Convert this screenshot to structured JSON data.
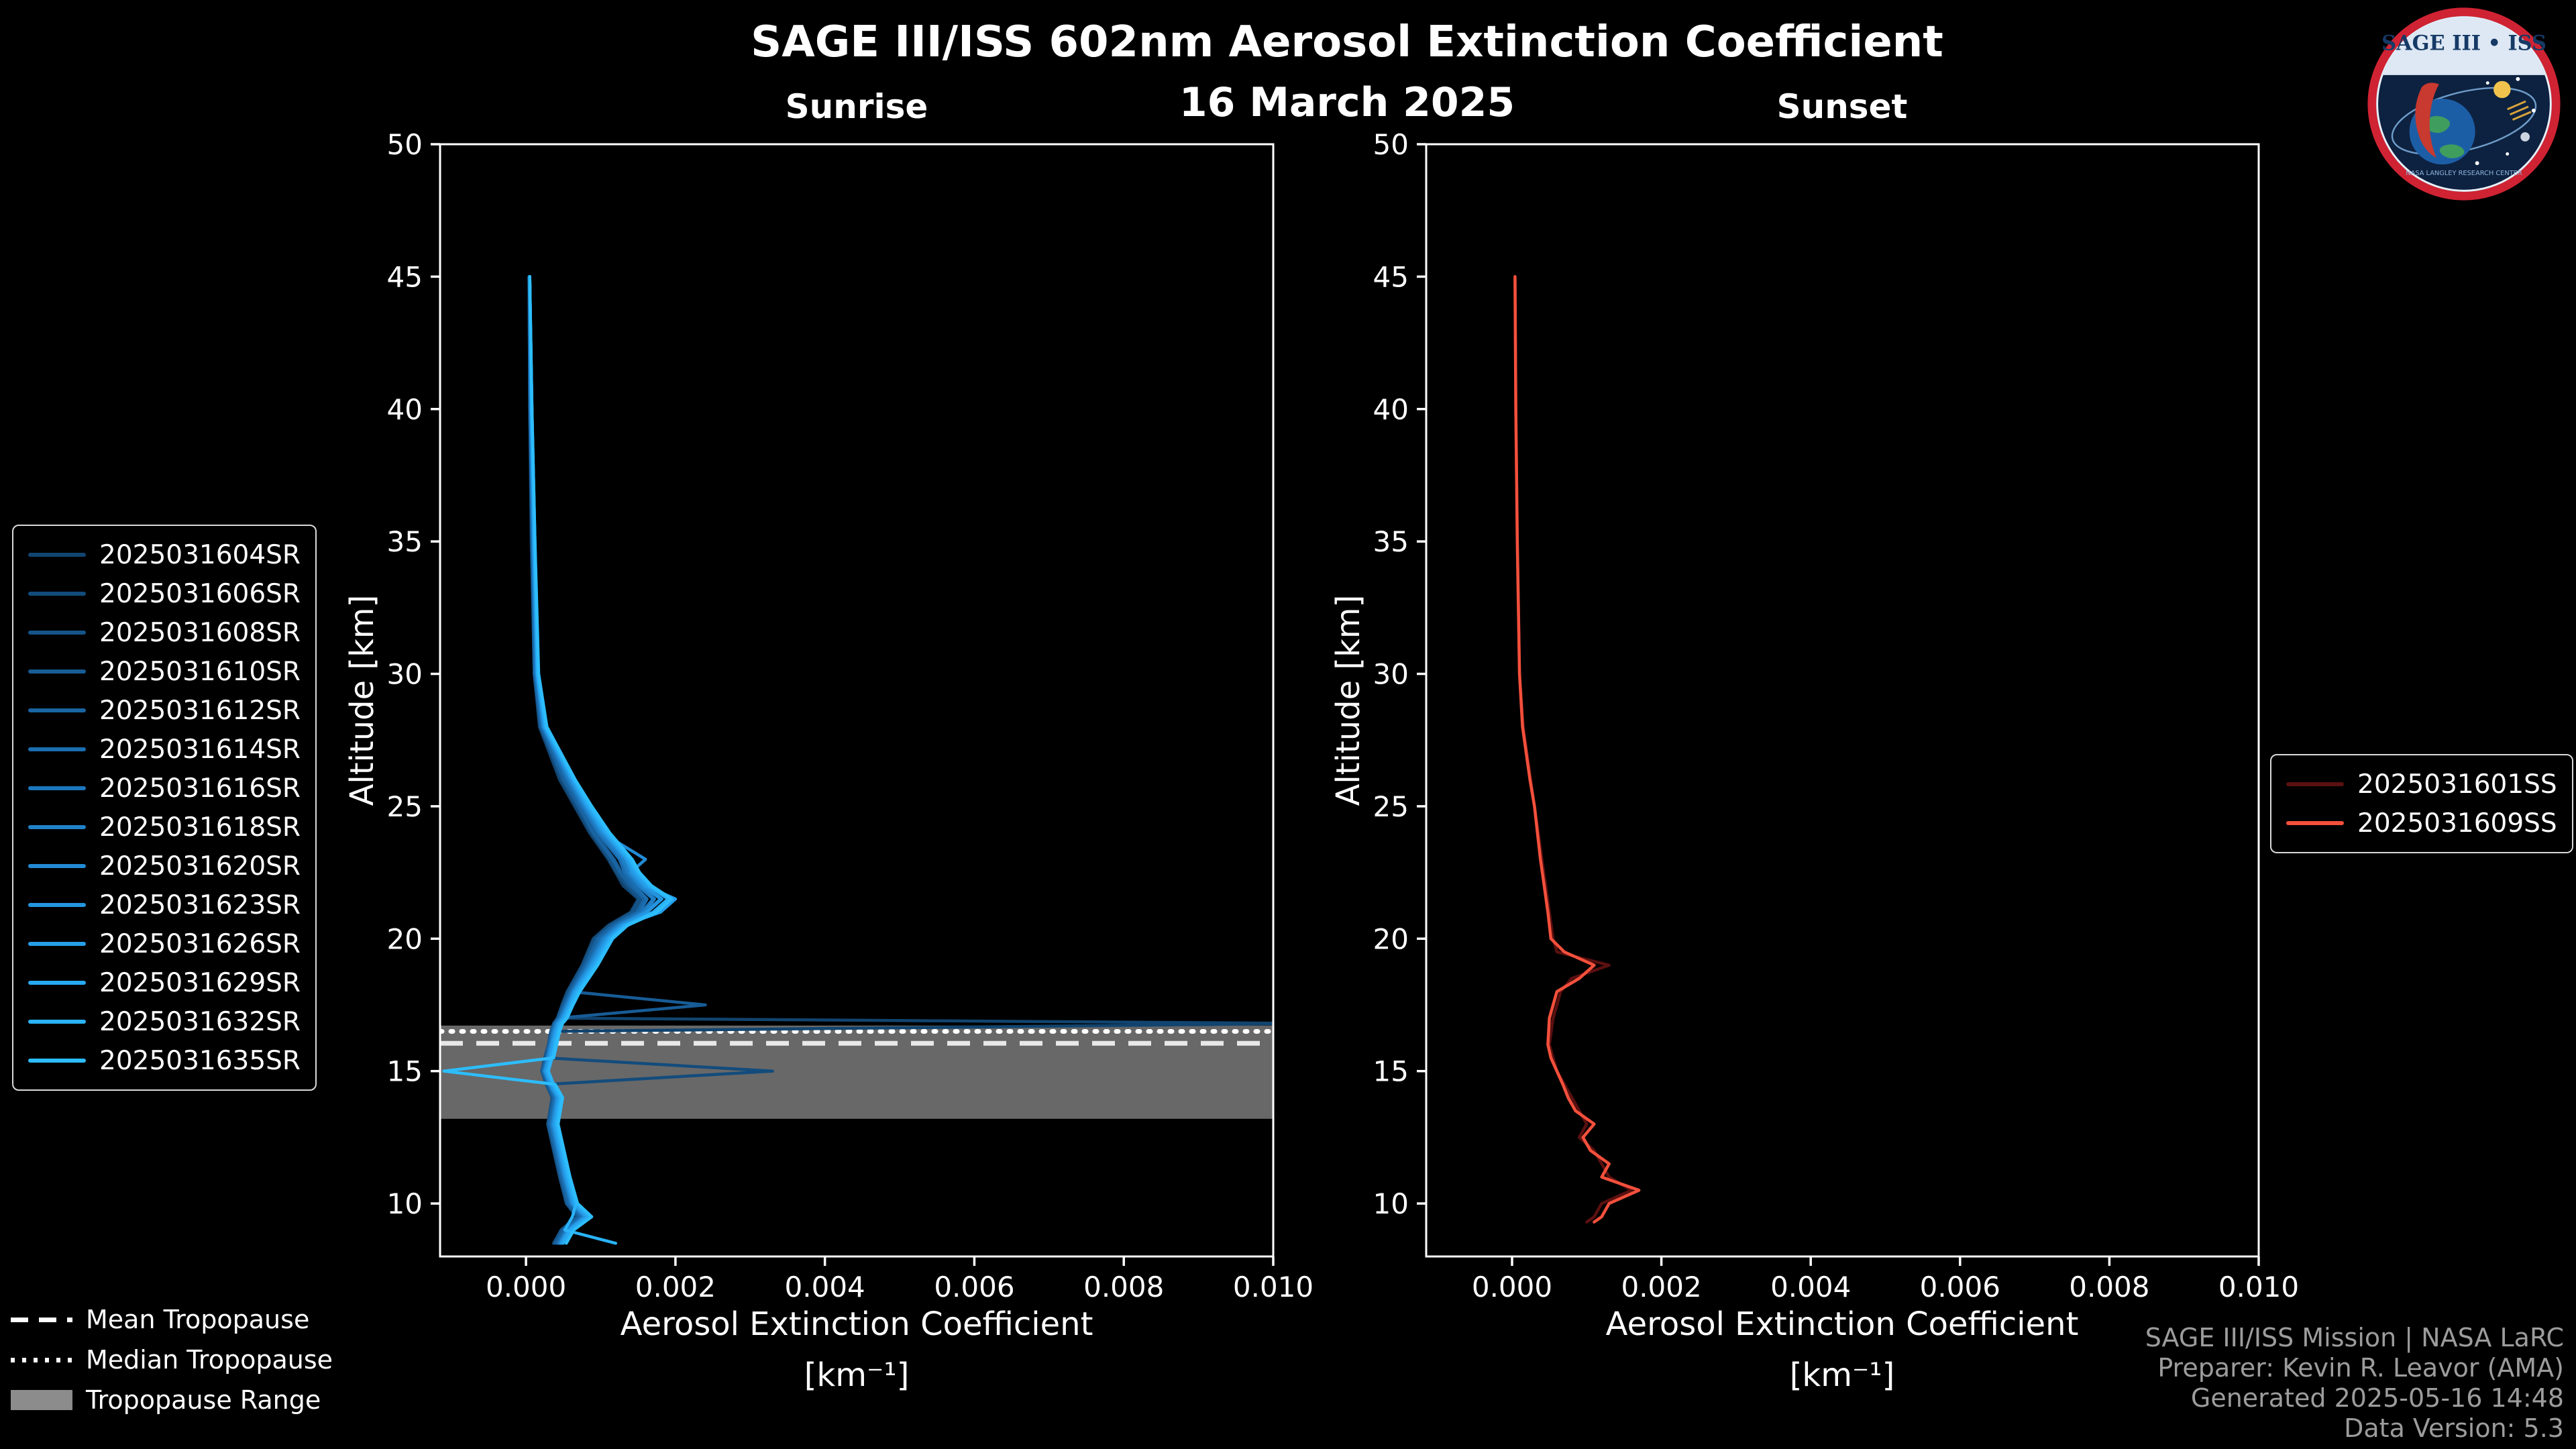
{
  "header": {
    "title": "SAGE III/ISS 602nm Aerosol Extinction Coefficient",
    "date": "16 March 2025"
  },
  "logo": {
    "title": "SAGE III • ISS",
    "ring_text": "NASA LANGLEY RESEARCH CENTER"
  },
  "credits": [
    "SAGE III/ISS Mission | NASA LaRC",
    "Preparer: Kevin R. Leavor (AMA)",
    "Generated 2025-05-16 14:48",
    "Data Version: 5.3"
  ],
  "tropopause_legend": [
    {
      "style": "dashed",
      "label": "Mean Tropopause"
    },
    {
      "style": "dotted",
      "label": "Median Tropopause"
    },
    {
      "style": "patch",
      "label": "Tropopause Range"
    }
  ],
  "colors": {
    "background": "#000000",
    "foreground": "#ffffff",
    "tropopause_band": "#909090",
    "credits_text": "#9c9c9c",
    "sunrise_dark": "#11446f",
    "sunrise_bright": "#2dbdfd",
    "sunset_dark": "#5a1010",
    "sunset_bright": "#f4503c"
  },
  "chart_data": [
    {
      "type": "line",
      "id": "sunrise",
      "title": "Sunrise",
      "xlabel": "Aerosol Extinction Coefficient",
      "xlabel_units": "[km⁻¹]",
      "ylabel": "Altitude [km]",
      "xlim": [
        -0.00115,
        0.01
      ],
      "ylim": [
        8,
        50
      ],
      "xticks": [
        0,
        0.002,
        0.004,
        0.006,
        0.008,
        0.01
      ],
      "xtick_labels": [
        "0.000",
        "0.002",
        "0.004",
        "0.006",
        "0.008",
        "0.010"
      ],
      "yticks": [
        10,
        15,
        20,
        25,
        30,
        35,
        40,
        45,
        50
      ],
      "grid": false,
      "legend_position": "left-outside",
      "value_scale": 0.0001,
      "altitudes": [
        45,
        40,
        35,
        30,
        28,
        26,
        25,
        24,
        23,
        22.5,
        22,
        21.5,
        21,
        20.5,
        20,
        19,
        18,
        17.5,
        17,
        16.8,
        16.5,
        16,
        15.5,
        15,
        14.5,
        14,
        13,
        12,
        11,
        10,
        9.5,
        9,
        8.5
      ],
      "series": [
        {
          "name": "2025031604SR",
          "color": "#11446f",
          "values": [
            0.4,
            0.5,
            0.7,
            1.1,
            1.8,
            4.5,
            6.5,
            8.5,
            11,
            12,
            13,
            15,
            14,
            11,
            9,
            7.5,
            5.5,
            4.8,
            4.2,
            105,
            3.4,
            3,
            2.6,
            2.2,
            2.8,
            3.6,
            3,
            3.8,
            4.6,
            5.5,
            7,
            4.8,
            3.8
          ]
        },
        {
          "name": "2025031606SR",
          "color": "#134c7c",
          "values": [
            0.5,
            0.5,
            0.8,
            1.2,
            2,
            5,
            7,
            9,
            11.5,
            12.5,
            14,
            15.5,
            14.5,
            11.5,
            9.5,
            7.8,
            5.8,
            5,
            4.3,
            3.8,
            3.4,
            3.1,
            2.7,
            33,
            2.9,
            3.7,
            3.1,
            3.9,
            4.7,
            5.6,
            7.2,
            5,
            4
          ]
        },
        {
          "name": "2025031608SR",
          "color": "#155489",
          "values": [
            0.4,
            0.6,
            0.8,
            1.1,
            1.9,
            4.8,
            6.8,
            8.8,
            11.2,
            12.2,
            13.5,
            15.2,
            14.2,
            11.2,
            9.2,
            7.6,
            5.6,
            4.9,
            4.2,
            3.7,
            3.3,
            3,
            2.5,
            2.1,
            2.7,
            3.5,
            2.9,
            3.7,
            4.5,
            5.4,
            6.8,
            4.7,
            3.7
          ]
        },
        {
          "name": "2025031610SR",
          "color": "#175c96",
          "values": [
            0.5,
            0.6,
            0.9,
            1.2,
            2.1,
            5.2,
            7.2,
            9.2,
            11.8,
            12.8,
            14.2,
            16,
            15,
            11.8,
            9.8,
            8,
            6,
            24,
            4.4,
            3.9,
            3.5,
            3.2,
            2.8,
            2.3,
            3,
            3.8,
            3.2,
            4,
            4.8,
            5.8,
            7.4,
            5.2,
            4.2
          ]
        },
        {
          "name": "2025031612SR",
          "color": "#1965a3",
          "values": [
            0.4,
            0.5,
            0.8,
            1.1,
            2,
            5.1,
            7.1,
            9,
            11.6,
            12.6,
            14,
            15.8,
            14.8,
            11.6,
            9.6,
            7.9,
            5.9,
            5.1,
            4.4,
            3.8,
            3.4,
            3.1,
            2.7,
            2.2,
            2.9,
            3.7,
            3.1,
            3.9,
            4.7,
            5.6,
            7.1,
            5,
            4
          ]
        },
        {
          "name": "2025031614SR",
          "color": "#1b6eb0",
          "values": [
            0.5,
            0.6,
            0.9,
            1.3,
            2.2,
            5.5,
            7.5,
            9.6,
            12.5,
            13.2,
            14.5,
            16.2,
            15.2,
            12,
            10,
            8.2,
            6.1,
            5.3,
            4.5,
            4,
            3.6,
            3.2,
            2.8,
            2.4,
            3.1,
            3.9,
            3.3,
            4.1,
            4.9,
            5.9,
            7.5,
            5.3,
            4.3
          ]
        },
        {
          "name": "2025031616SR",
          "color": "#1d77bd",
          "values": [
            0.5,
            0.6,
            0.9,
            1.3,
            2.2,
            5.6,
            7.6,
            9.8,
            12.8,
            13.5,
            15,
            17,
            15.5,
            12.2,
            10.2,
            8.3,
            6.2,
            5.4,
            4.6,
            4,
            3.6,
            3.3,
            2.9,
            2.4,
            3.1,
            4,
            3.4,
            4.2,
            5,
            6,
            7.6,
            5.4,
            4.4
          ]
        },
        {
          "name": "2025031618SR",
          "color": "#2081c9",
          "values": [
            0.5,
            0.7,
            1,
            1.4,
            2.3,
            5.8,
            7.8,
            10,
            13,
            13.8,
            15.2,
            17.2,
            15.8,
            12.4,
            10.4,
            8.5,
            6.3,
            5.5,
            4.7,
            4.1,
            3.7,
            3.3,
            2.9,
            2.5,
            3.2,
            4.1,
            3.5,
            4.3,
            5.1,
            6.1,
            7.8,
            5.5,
            4.5
          ]
        },
        {
          "name": "2025031620SR",
          "color": "#228bd5",
          "values": [
            0.5,
            0.7,
            1,
            1.4,
            2.4,
            6,
            8,
            10.2,
            16,
            14,
            15.5,
            18,
            16,
            12.6,
            10.6,
            8.6,
            6.4,
            5.6,
            4.8,
            4.2,
            3.8,
            3.4,
            3,
            2.5,
            3.2,
            4.2,
            3.6,
            4.4,
            5.2,
            6.2,
            7.9,
            5.6,
            4.6
          ]
        },
        {
          "name": "2025031623SR",
          "color": "#2495e0",
          "values": [
            0.5,
            0.7,
            1,
            1.5,
            2.4,
            6.1,
            8.1,
            10.4,
            13.4,
            14.2,
            15.8,
            18.2,
            16.2,
            12.8,
            10.8,
            8.8,
            6.5,
            5.7,
            4.9,
            4.3,
            3.9,
            3.5,
            3.1,
            2.6,
            3.3,
            4.3,
            3.7,
            4.5,
            5.3,
            6.3,
            8,
            5.7,
            4.7
          ]
        },
        {
          "name": "2025031626SR",
          "color": "#269fea",
          "values": [
            0.5,
            0.7,
            1.1,
            1.5,
            2.5,
            6.2,
            8.2,
            10.6,
            13.6,
            14.5,
            16,
            20,
            18,
            13,
            11,
            9,
            6.6,
            5.8,
            5,
            4.4,
            4,
            3.6,
            3.2,
            2.7,
            3.4,
            4.4,
            3.8,
            4.6,
            5.4,
            6.4,
            8.2,
            5.8,
            4.8
          ]
        },
        {
          "name": "2025031629SR",
          "color": "#28a9f2",
          "values": [
            0.5,
            0.8,
            1.1,
            1.6,
            2.6,
            6.4,
            8.4,
            10.8,
            13.8,
            14.8,
            16.4,
            19,
            17,
            13.2,
            11.2,
            9.2,
            6.8,
            6,
            5.2,
            4.6,
            4.2,
            3.8,
            3.4,
            2.9,
            3.6,
            4.6,
            4,
            4.8,
            5.6,
            6.6,
            8.4,
            6,
            5
          ]
        },
        {
          "name": "2025031632SR",
          "color": "#2ab3f8",
          "values": [
            0.5,
            0.8,
            1.2,
            1.6,
            2.7,
            6.5,
            8.6,
            11,
            14,
            15,
            16.6,
            19.2,
            17.2,
            13.4,
            11.4,
            9.4,
            7,
            6.1,
            5.3,
            4.7,
            4.3,
            3.9,
            3.5,
            3,
            3.7,
            4.7,
            4.1,
            4.9,
            5.7,
            6.7,
            6.2,
            5.2,
            12
          ]
        },
        {
          "name": "2025031635SR",
          "color": "#2dbdfd",
          "values": [
            0.5,
            0.8,
            1.2,
            1.7,
            2.8,
            6.6,
            8.8,
            11.2,
            14.2,
            15.2,
            16.8,
            19.5,
            17.5,
            13.6,
            11.6,
            9.6,
            7.2,
            6.3,
            5.5,
            4.9,
            4.5,
            4.1,
            3.7,
            -11,
            3.9,
            4.9,
            4.3,
            5.1,
            5.9,
            6.9,
            8.8,
            6.4,
            5.4
          ]
        }
      ],
      "tropopause": {
        "mean_km": 16.05,
        "median_km": 16.5,
        "range_km": [
          13.2,
          16.72
        ]
      }
    },
    {
      "type": "line",
      "id": "sunset",
      "title": "Sunset",
      "xlabel": "Aerosol Extinction Coefficient",
      "xlabel_units": "[km⁻¹]",
      "ylabel": "Altitude [km]",
      "xlim": [
        -0.00115,
        0.01
      ],
      "ylim": [
        8,
        50
      ],
      "xticks": [
        0,
        0.002,
        0.004,
        0.006,
        0.008,
        0.01
      ],
      "xtick_labels": [
        "0.000",
        "0.002",
        "0.004",
        "0.006",
        "0.008",
        "0.010"
      ],
      "yticks": [
        10,
        15,
        20,
        25,
        30,
        35,
        40,
        45,
        50
      ],
      "grid": false,
      "legend_position": "right-outside",
      "value_scale": 0.0001,
      "altitudes": [
        45,
        40,
        35,
        30,
        28,
        26,
        25,
        24,
        23,
        22,
        21,
        20,
        19.5,
        19,
        18.5,
        18,
        17.5,
        17,
        16,
        15.5,
        15,
        14.5,
        14,
        13.5,
        13,
        12.5,
        12,
        11.5,
        11,
        10.5,
        10,
        9.5,
        9.3
      ],
      "series": [
        {
          "name": "2025031601SS",
          "color": "#5a1010",
          "values": [
            0.4,
            0.5,
            0.7,
            1,
            1.5,
            2.5,
            3,
            3.5,
            4,
            4.5,
            5,
            5.5,
            6,
            13,
            8,
            6.5,
            6,
            5.5,
            5,
            5.5,
            6,
            7,
            8,
            9,
            10,
            9,
            11,
            12,
            13,
            16,
            12,
            11,
            10
          ]
        },
        {
          "name": "2025031609SS",
          "color": "#f4503c",
          "values": [
            0.4,
            0.5,
            0.7,
            1,
            1.4,
            2.4,
            3,
            3.4,
            3.8,
            4.3,
            4.8,
            5.2,
            7,
            11,
            9,
            6,
            5.5,
            5,
            4.8,
            5.2,
            6,
            6.8,
            7.5,
            8.5,
            11,
            9.5,
            10.5,
            13,
            12,
            17,
            13,
            12,
            11
          ]
        }
      ],
      "tropopause": null
    }
  ]
}
